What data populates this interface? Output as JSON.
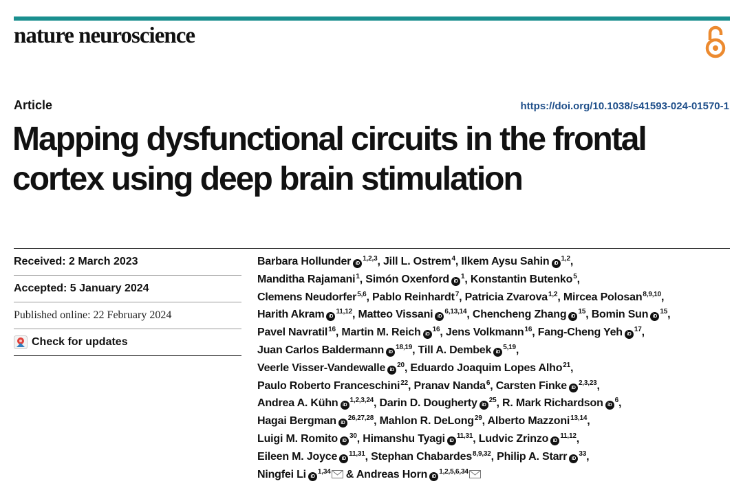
{
  "colors": {
    "accent_bar": "#1a8f8f",
    "oa_orange": "#ec8a2f",
    "link_blue": "#1f4f8a"
  },
  "header": {
    "journal": "nature neuroscience",
    "oa_icon": "open-access-lock-icon"
  },
  "article": {
    "type": "Article",
    "doi": "https://doi.org/10.1038/s41593-024-01570-1",
    "title_line1": "Mapping dysfunctional circuits in the frontal",
    "title_line2": "cortex using deep brain stimulation"
  },
  "dates": {
    "received": "Received: 2 March 2023",
    "accepted": "Accepted: 5 January 2024",
    "published": "Published online: 22 February 2024",
    "check_updates": "Check for updates"
  },
  "authors": [
    {
      "name": "Barbara Hollunder",
      "orcid": true,
      "aff": "1,2,3",
      "sep": ", "
    },
    {
      "name": "Jill L. Ostrem",
      "orcid": false,
      "aff": "4",
      "sep": ", "
    },
    {
      "name": "Ilkem Aysu Sahin",
      "orcid": true,
      "aff": "1,2",
      "sep": ","
    },
    {
      "name": "Manditha Rajamani",
      "orcid": false,
      "aff": "1",
      "sep": ", ",
      "break_before": true
    },
    {
      "name": "Simón Oxenford",
      "orcid": true,
      "aff": "1",
      "sep": ", "
    },
    {
      "name": "Konstantin Butenko",
      "orcid": false,
      "aff": "5",
      "sep": ","
    },
    {
      "name": "Clemens Neudorfer",
      "orcid": false,
      "aff": "5,6",
      "sep": ", ",
      "break_before": true
    },
    {
      "name": "Pablo Reinhardt",
      "orcid": false,
      "aff": "7",
      "sep": ", "
    },
    {
      "name": "Patricia Zvarova",
      "orcid": false,
      "aff": "1,2",
      "sep": ", "
    },
    {
      "name": "Mircea Polosan",
      "orcid": false,
      "aff": "8,9,10",
      "sep": ","
    },
    {
      "name": "Harith Akram",
      "orcid": true,
      "aff": "11,12",
      "sep": ", ",
      "break_before": true
    },
    {
      "name": "Matteo Vissani",
      "orcid": true,
      "aff": "6,13,14",
      "sep": ", "
    },
    {
      "name": "Chencheng Zhang",
      "orcid": true,
      "aff": "15",
      "sep": ", "
    },
    {
      "name": "Bomin Sun",
      "orcid": true,
      "aff": "15",
      "sep": ","
    },
    {
      "name": "Pavel Navratil",
      "orcid": false,
      "aff": "16",
      "sep": ", ",
      "break_before": true
    },
    {
      "name": "Martin M. Reich",
      "orcid": true,
      "aff": "16",
      "sep": ", "
    },
    {
      "name": "Jens Volkmann",
      "orcid": false,
      "aff": "16",
      "sep": ", "
    },
    {
      "name": "Fang-Cheng Yeh",
      "orcid": true,
      "aff": "17",
      "sep": ","
    },
    {
      "name": "Juan Carlos Baldermann",
      "orcid": true,
      "aff": "18,19",
      "sep": ", ",
      "break_before": true
    },
    {
      "name": "Till A. Dembek",
      "orcid": true,
      "aff": "5,19",
      "sep": ","
    },
    {
      "name": "Veerle Visser-Vandewalle",
      "orcid": true,
      "aff": "20",
      "sep": ", ",
      "break_before": true
    },
    {
      "name": "Eduardo Joaquim Lopes Alho",
      "orcid": false,
      "aff": "21",
      "sep": ","
    },
    {
      "name": "Paulo Roberto Franceschini",
      "orcid": false,
      "aff": "22",
      "sep": ", ",
      "break_before": true
    },
    {
      "name": "Pranav Nanda",
      "orcid": false,
      "aff": "6",
      "sep": ", "
    },
    {
      "name": "Carsten Finke",
      "orcid": true,
      "aff": "2,3,23",
      "sep": ","
    },
    {
      "name": "Andrea A. Kühn",
      "orcid": true,
      "aff": "1,2,3,24",
      "sep": ", ",
      "break_before": true
    },
    {
      "name": "Darin D. Dougherty",
      "orcid": true,
      "aff": "25",
      "sep": ", "
    },
    {
      "name": "R. Mark Richardson",
      "orcid": true,
      "aff": "6",
      "sep": ","
    },
    {
      "name": "Hagai Bergman",
      "orcid": true,
      "aff": "26,27,28",
      "sep": ", ",
      "break_before": true
    },
    {
      "name": "Mahlon R. DeLong",
      "orcid": false,
      "aff": "29",
      "sep": ", "
    },
    {
      "name": "Alberto Mazzoni",
      "orcid": false,
      "aff": "13,14",
      "sep": ","
    },
    {
      "name": "Luigi M. Romito",
      "orcid": true,
      "aff": "30",
      "sep": ", ",
      "break_before": true
    },
    {
      "name": "Himanshu Tyagi",
      "orcid": true,
      "aff": "11,31",
      "sep": ", "
    },
    {
      "name": "Ludvic Zrinzo",
      "orcid": true,
      "aff": "11,12",
      "sep": ","
    },
    {
      "name": "Eileen M. Joyce",
      "orcid": true,
      "aff": "11,31",
      "sep": ", ",
      "break_before": true
    },
    {
      "name": "Stephan Chabardes",
      "orcid": false,
      "aff": "8,9,32",
      "sep": ", "
    },
    {
      "name": "Philip A. Starr",
      "orcid": true,
      "aff": "33",
      "sep": ","
    },
    {
      "name": "Ningfei Li",
      "orcid": true,
      "aff": "1,34",
      "mail": true,
      "sep": " & ",
      "break_before": true
    },
    {
      "name": "Andreas Horn",
      "orcid": true,
      "aff": "1,2,5,6,34",
      "mail": true,
      "sep": ""
    }
  ]
}
